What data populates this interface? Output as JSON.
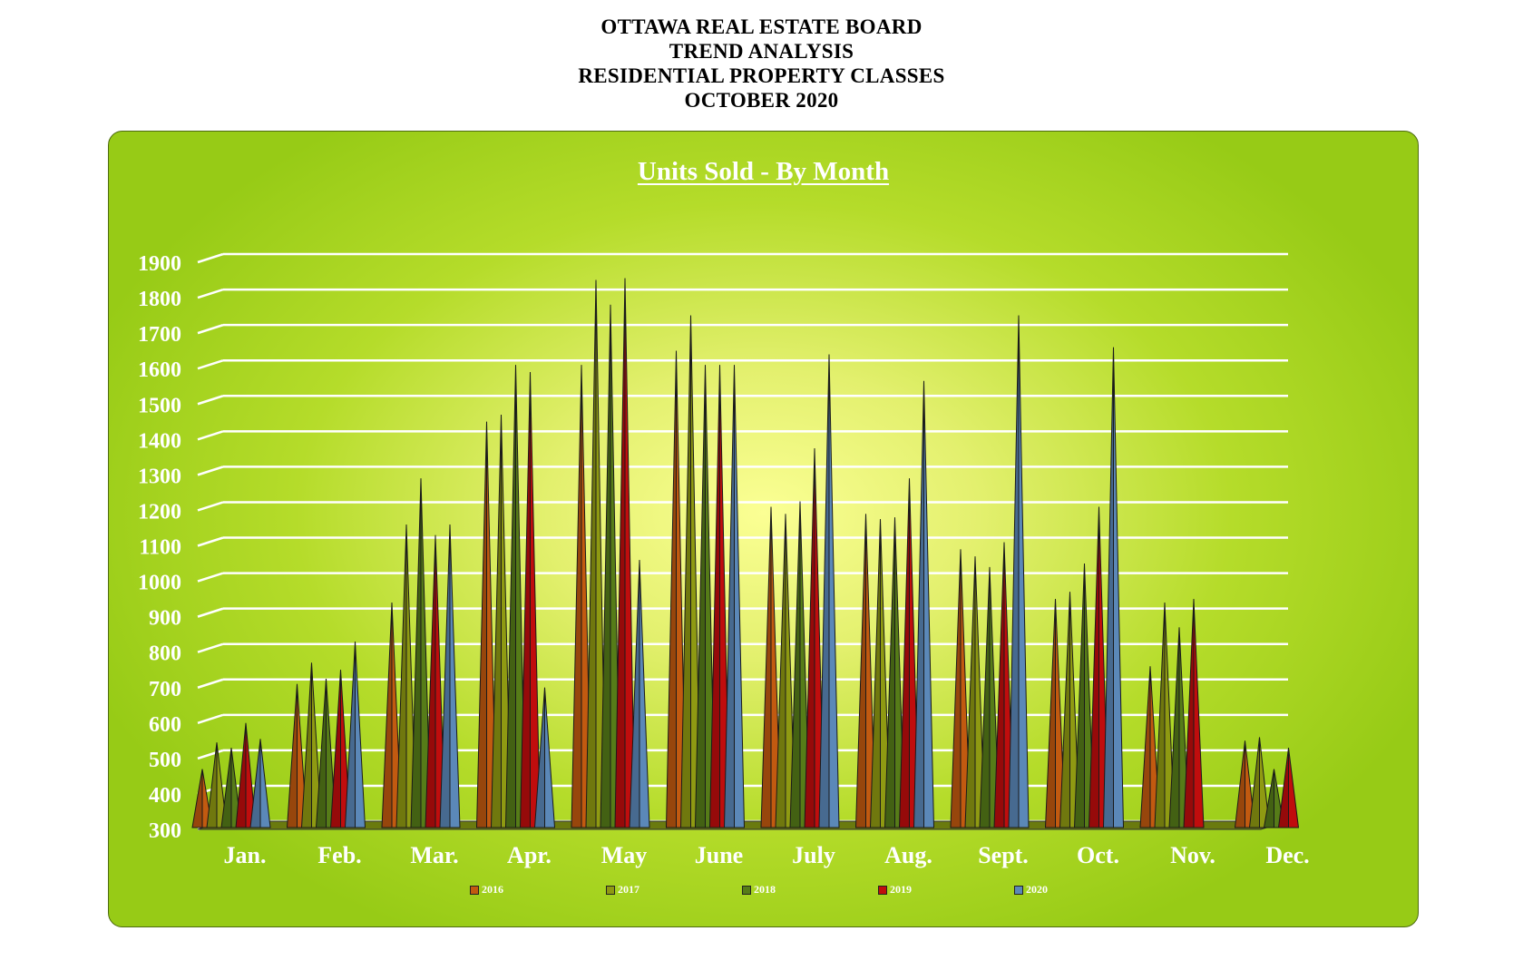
{
  "header": {
    "line1": "OTTAWA REAL ESTATE BOARD",
    "line2": "TREND ANALYSIS",
    "line3": "RESIDENTIAL PROPERTY CLASSES",
    "line4": "OCTOBER 2020"
  },
  "chart_data": {
    "type": "bar",
    "title": "Units Sold - By Month",
    "xlabel": "",
    "ylabel": "",
    "ylim": [
      300,
      1900
    ],
    "yticks": [
      300,
      400,
      500,
      600,
      700,
      800,
      900,
      1000,
      1100,
      1200,
      1300,
      1400,
      1500,
      1600,
      1700,
      1800,
      1900
    ],
    "grid": true,
    "legend_position": "bottom",
    "categories": [
      "Jan.",
      "Feb.",
      "Mar.",
      "Apr.",
      "May",
      "June",
      "July",
      "Aug.",
      "Sept.",
      "Oct.",
      "Nov.",
      "Dec."
    ],
    "series": [
      {
        "name": "2016",
        "color": "#c25a10",
        "values": [
          470,
          710,
          940,
          1450,
          1610,
          1650,
          1210,
          1190,
          1090,
          950,
          760,
          550
        ]
      },
      {
        "name": "2017",
        "color": "#8f9a12",
        "values": [
          545,
          770,
          1160,
          1470,
          1850,
          1750,
          1190,
          1175,
          1070,
          970,
          940,
          560
        ]
      },
      {
        "name": "2018",
        "color": "#567c18",
        "values": [
          530,
          725,
          1290,
          1610,
          1780,
          1610,
          1225,
          1180,
          1040,
          1050,
          870,
          470
        ]
      },
      {
        "name": "2019",
        "color": "#c00d0d",
        "values": [
          600,
          750,
          1130,
          1590,
          1855,
          1610,
          1375,
          1290,
          1110,
          1210,
          950,
          530
        ]
      },
      {
        "name": "2020",
        "color": "#5b88b8",
        "values": [
          555,
          830,
          1160,
          700,
          1060,
          1610,
          1640,
          1565,
          1750,
          1660,
          null,
          null
        ]
      }
    ]
  }
}
